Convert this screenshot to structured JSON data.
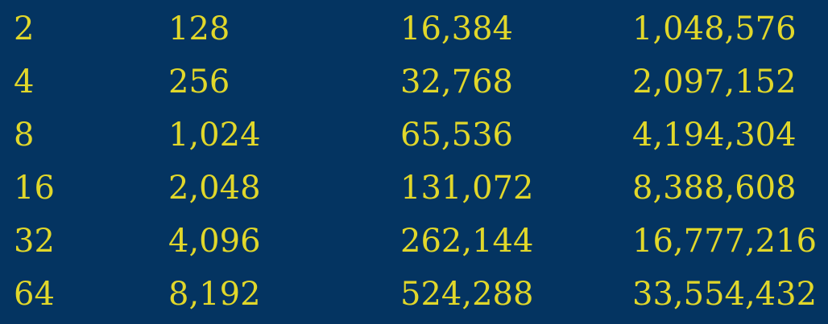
{
  "colors": {
    "background": "#043461",
    "text": "#E1D72A"
  },
  "table": {
    "rows": [
      [
        "2",
        "128",
        "16,384",
        "1,048,576"
      ],
      [
        "4",
        "256",
        "32,768",
        "2,097,152"
      ],
      [
        "8",
        "1,024",
        "65,536",
        "4,194,304"
      ],
      [
        "16",
        "2,048",
        "131,072",
        "8,388,608"
      ],
      [
        "32",
        "4,096",
        "262,144",
        "16,777,216"
      ],
      [
        "64",
        "8,192",
        "524,288",
        "33,554,432"
      ]
    ]
  }
}
